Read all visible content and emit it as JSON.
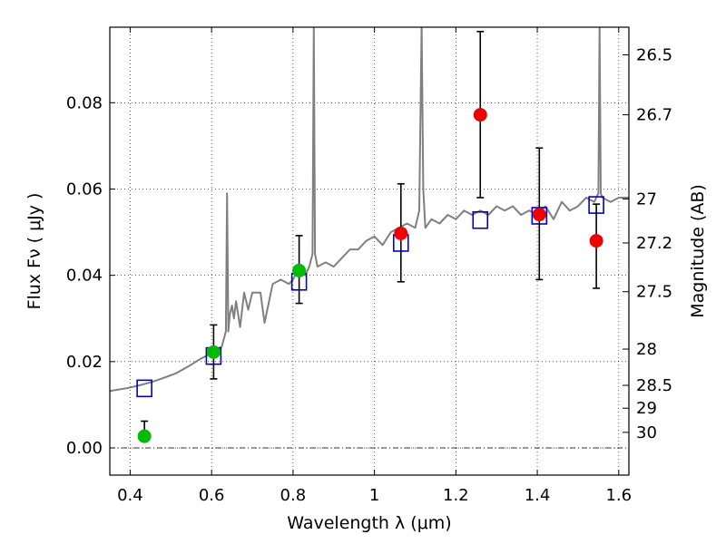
{
  "chart_data": {
    "type": "scatter",
    "title": "",
    "xlabel": "Wavelength  λ (μm)",
    "ylabel": "Flux  Fν  ( μJy )",
    "ylabel_right": "Magnitude (AB)",
    "xlim": [
      0.35,
      1.625
    ],
    "ylim": [
      -0.0063,
      0.0975
    ],
    "grid": true,
    "grid_style": "dotted",
    "zero_line": 0.0,
    "x_ticks": [
      {
        "value": 0.4,
        "label": "0.4"
      },
      {
        "value": 0.6,
        "label": "0.6"
      },
      {
        "value": 0.8,
        "label": "0.8"
      },
      {
        "value": 1.0,
        "label": "1"
      },
      {
        "value": 1.2,
        "label": "1.2"
      },
      {
        "value": 1.4,
        "label": "1.4"
      },
      {
        "value": 1.6,
        "label": "1.6"
      }
    ],
    "y_ticks": [
      {
        "value": 0.0,
        "label": "0.00"
      },
      {
        "value": 0.02,
        "label": "0.02"
      },
      {
        "value": 0.04,
        "label": "0.04"
      },
      {
        "value": 0.06,
        "label": "0.06"
      },
      {
        "value": 0.08,
        "label": "0.08"
      }
    ],
    "right_ticks": [
      {
        "flux": 0.0911,
        "label": "26.5"
      },
      {
        "flux": 0.0772,
        "label": "26.7"
      },
      {
        "flux": 0.0577,
        "label": "27"
      },
      {
        "flux": 0.0475,
        "label": "27.2"
      },
      {
        "flux": 0.0362,
        "label": "27.5"
      },
      {
        "flux": 0.0229,
        "label": "28"
      },
      {
        "flux": 0.0145,
        "label": "28.5"
      },
      {
        "flux": 0.0092,
        "label": "29"
      },
      {
        "flux": 0.0036,
        "label": "30"
      }
    ],
    "colors": {
      "spectrum": "#808080",
      "model": "#0000cc",
      "green": "#00bb00",
      "red": "#ee0000",
      "errorbar": "#000000"
    },
    "series": [
      {
        "kind": "spectrum",
        "x": [
          0.35,
          0.37,
          0.39,
          0.41,
          0.43,
          0.45,
          0.47,
          0.49,
          0.51,
          0.53,
          0.55,
          0.57,
          0.59,
          0.61,
          0.625,
          0.635,
          0.638,
          0.641,
          0.645,
          0.65,
          0.655,
          0.66,
          0.67,
          0.68,
          0.69,
          0.7,
          0.72,
          0.73,
          0.75,
          0.77,
          0.79,
          0.8,
          0.81,
          0.82,
          0.83,
          0.84,
          0.848,
          0.851,
          0.854,
          0.86,
          0.88,
          0.9,
          0.92,
          0.94,
          0.96,
          0.98,
          1.0,
          1.02,
          1.04,
          1.06,
          1.08,
          1.1,
          1.11,
          1.116,
          1.12,
          1.125,
          1.14,
          1.16,
          1.18,
          1.2,
          1.22,
          1.24,
          1.26,
          1.28,
          1.3,
          1.32,
          1.34,
          1.36,
          1.38,
          1.4,
          1.42,
          1.44,
          1.46,
          1.48,
          1.5,
          1.52,
          1.54,
          1.55,
          1.553,
          1.556,
          1.56,
          1.58,
          1.6,
          1.625
        ],
        "y": [
          0.0132,
          0.0135,
          0.0138,
          0.0142,
          0.0147,
          0.0152,
          0.0158,
          0.0165,
          0.0172,
          0.0182,
          0.0193,
          0.0205,
          0.0215,
          0.0225,
          0.0235,
          0.027,
          0.059,
          0.027,
          0.031,
          0.033,
          0.03,
          0.034,
          0.028,
          0.036,
          0.032,
          0.036,
          0.036,
          0.029,
          0.038,
          0.039,
          0.038,
          0.039,
          0.041,
          0.041,
          0.04,
          0.042,
          0.045,
          0.098,
          0.045,
          0.042,
          0.043,
          0.042,
          0.044,
          0.046,
          0.046,
          0.048,
          0.049,
          0.047,
          0.05,
          0.051,
          0.052,
          0.051,
          0.055,
          0.098,
          0.06,
          0.051,
          0.053,
          0.052,
          0.054,
          0.053,
          0.055,
          0.054,
          0.055,
          0.054,
          0.056,
          0.055,
          0.056,
          0.054,
          0.055,
          0.054,
          0.056,
          0.053,
          0.057,
          0.055,
          0.056,
          0.058,
          0.057,
          0.059,
          0.098,
          0.059,
          0.058,
          0.057,
          0.058,
          0.058
        ]
      },
      {
        "kind": "model_points",
        "marker": "open-square",
        "x": [
          0.435,
          0.605,
          0.815,
          1.065,
          1.26,
          1.405,
          1.545
        ],
        "y": [
          0.0138,
          0.0213,
          0.0385,
          0.0475,
          0.0528,
          0.0538,
          0.0563
        ]
      },
      {
        "kind": "detections",
        "marker": "filled-circle",
        "color": "green",
        "x": [
          0.435,
          0.605,
          0.815
        ],
        "y": [
          0.0027,
          0.0222,
          0.0411
        ],
        "yerr_low": [
          0.0062,
          0.016,
          0.0335
        ],
        "yerr_high": [
          0.0027,
          0.0285,
          0.0492
        ]
      },
      {
        "kind": "detections",
        "marker": "filled-circle",
        "color": "red",
        "x": [
          1.065,
          1.26,
          1.405,
          1.545
        ],
        "y": [
          0.0497,
          0.0772,
          0.0541,
          0.048
        ],
        "yerr_low": [
          0.0385,
          0.058,
          0.039,
          0.037
        ],
        "yerr_high": [
          0.0612,
          0.0965,
          0.0695,
          0.0565
        ]
      }
    ]
  }
}
